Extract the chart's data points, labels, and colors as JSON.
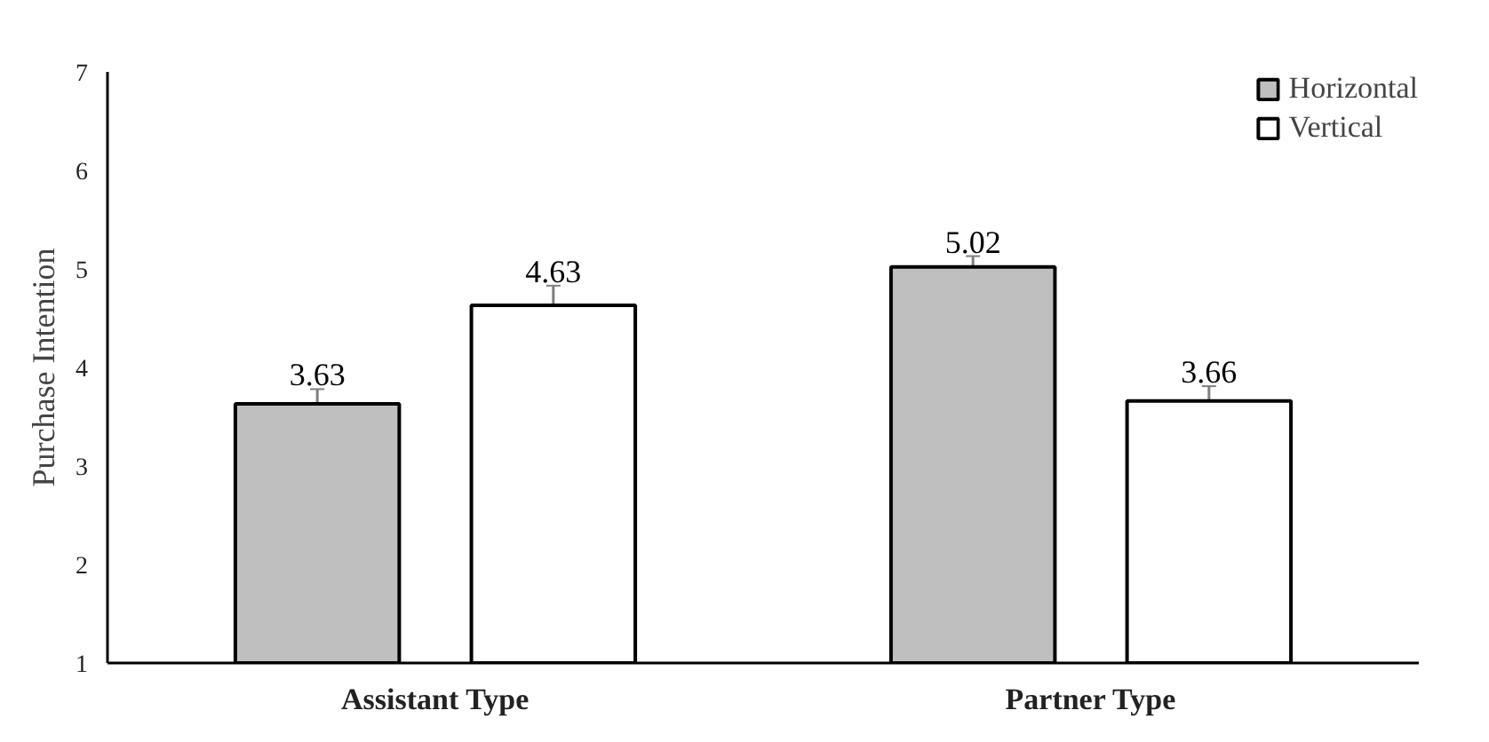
{
  "chart_data": {
    "type": "bar",
    "ylabel": "Purchase Intention",
    "categories": [
      "Assistant Type",
      "Partner Type"
    ],
    "series": [
      {
        "name": "Horizontal",
        "color": "#bfbfbf",
        "values": [
          3.63,
          5.02
        ],
        "errors": [
          0.15,
          0.11
        ]
      },
      {
        "name": "Vertical",
        "color": "#ffffff",
        "values": [
          4.63,
          3.66
        ],
        "errors": [
          0.2,
          0.15
        ]
      }
    ],
    "ylim": [
      1,
      7
    ],
    "yticks": [
      1,
      2,
      3,
      4,
      5,
      6,
      7
    ],
    "grid": false,
    "legend": "top right",
    "data_labels": true
  }
}
